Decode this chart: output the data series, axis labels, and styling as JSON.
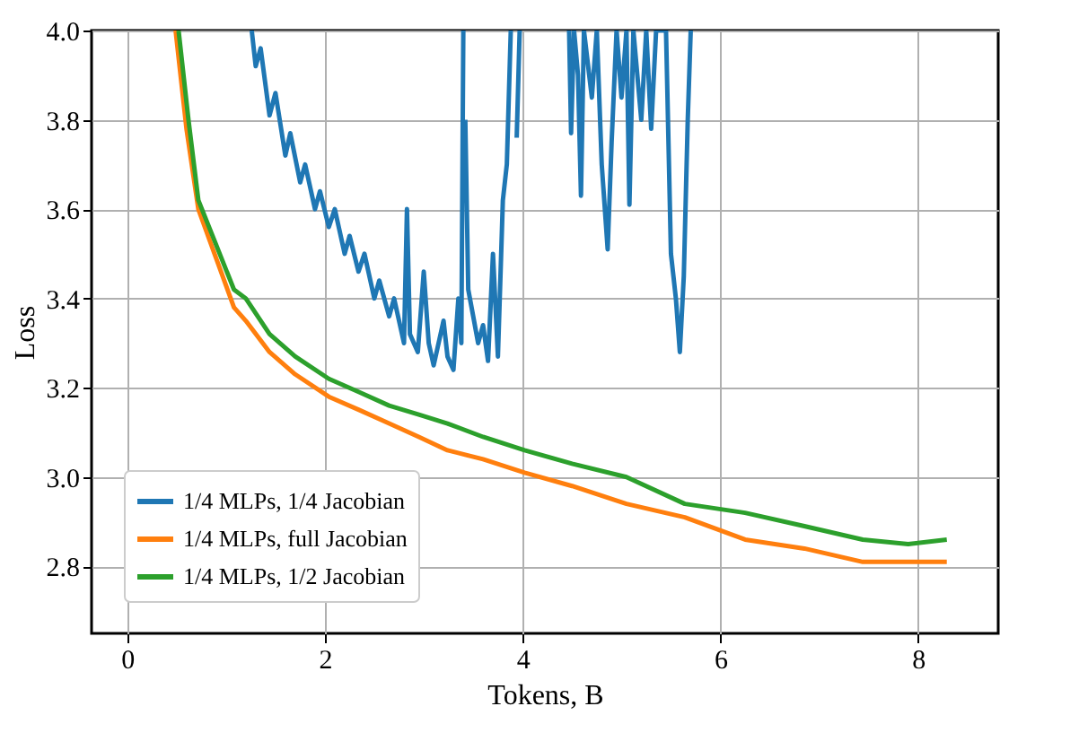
{
  "chart_data": {
    "type": "line",
    "xlabel": "Tokens, B",
    "ylabel": "Loss",
    "xlim": [
      -0.36,
      8.81
    ],
    "ylim": [
      2.65,
      4.0
    ],
    "xticks": [
      0,
      2,
      4,
      6,
      8
    ],
    "yticks": [
      2.8,
      {
        "value": 3,
        "label": "3.0"
      },
      3.2,
      3.4,
      3.6,
      3.8,
      {
        "value": 4,
        "label": "4.0"
      }
    ],
    "grid": true,
    "legend": "bottom left",
    "line_style": "solid",
    "marker": "none",
    "series": [
      {
        "name": "1/4 MLPs, 1/4 Jacobian",
        "color": "#1f77b4",
        "x": [
          1.26,
          1.3,
          1.35,
          1.44,
          1.5,
          1.6,
          1.65,
          1.75,
          1.8,
          1.9,
          1.95,
          2.04,
          2.1,
          2.2,
          2.25,
          2.34,
          2.4,
          2.5,
          2.55,
          2.65,
          2.7,
          2.8,
          2.83,
          2.86,
          2.94,
          3.0,
          3.05,
          3.1,
          3.2,
          3.24,
          3.3,
          3.35,
          3.38,
          3.4,
          3.41,
          3.42,
          3.45,
          3.5,
          3.55,
          3.6,
          3.65,
          3.7,
          3.75,
          3.8,
          3.84,
          3.88,
          3.92,
          3.94,
          3.97,
          4.2,
          4.47,
          4.49,
          4.52,
          4.56,
          4.59,
          4.62,
          4.7,
          4.75,
          4.8,
          4.86,
          4.9,
          4.95,
          5.0,
          5.05,
          5.08,
          5.12,
          5.2,
          5.25,
          5.3,
          5.35,
          5.45,
          5.5,
          5.55,
          5.59,
          5.63,
          5.67,
          5.7
        ],
        "values": [
          4.0,
          3.92,
          3.96,
          3.81,
          3.86,
          3.72,
          3.77,
          3.66,
          3.7,
          3.6,
          3.64,
          3.56,
          3.6,
          3.5,
          3.54,
          3.46,
          3.5,
          3.4,
          3.44,
          3.36,
          3.4,
          3.3,
          3.6,
          3.32,
          3.28,
          3.46,
          3.3,
          3.25,
          3.35,
          3.27,
          3.24,
          3.4,
          3.3,
          4.0,
          null,
          3.8,
          3.42,
          3.36,
          3.3,
          3.34,
          3.26,
          3.5,
          3.27,
          3.62,
          3.7,
          4.0,
          null,
          3.76,
          4.0,
          null,
          4.0,
          3.77,
          4.0,
          3.9,
          3.63,
          4.0,
          3.85,
          4.0,
          3.7,
          3.51,
          3.75,
          4.0,
          3.85,
          4.0,
          3.61,
          4.0,
          3.8,
          4.0,
          3.78,
          4.0,
          4.0,
          3.5,
          3.4,
          3.28,
          3.45,
          3.8,
          4.0
        ]
      },
      {
        "name": "1/4 MLPs, full Jacobian",
        "color": "#ff7f0e",
        "x": [
          0.49,
          0.6,
          0.72,
          0.9,
          1.08,
          1.2,
          1.44,
          1.7,
          2.04,
          2.35,
          2.65,
          2.95,
          3.24,
          3.6,
          4.02,
          4.5,
          5.05,
          5.64,
          6.25,
          6.85,
          7.44,
          7.9,
          8.29
        ],
        "values": [
          4.0,
          3.78,
          3.6,
          3.49,
          3.38,
          3.35,
          3.28,
          3.23,
          3.18,
          3.15,
          3.12,
          3.09,
          3.06,
          3.04,
          3.01,
          2.98,
          2.94,
          2.91,
          2.86,
          2.84,
          2.81,
          2.81,
          2.81
        ]
      },
      {
        "name": "1/4 MLPs, 1/2 Jacobian",
        "color": "#2ca02c",
        "x": [
          0.52,
          0.62,
          0.72,
          0.9,
          1.08,
          1.2,
          1.44,
          1.7,
          2.04,
          2.35,
          2.65,
          2.95,
          3.24,
          3.6,
          4.02,
          4.5,
          5.05,
          5.64,
          6.25,
          6.85,
          7.44,
          7.9,
          8.29
        ],
        "values": [
          4.0,
          3.8,
          3.62,
          3.52,
          3.42,
          3.4,
          3.32,
          3.27,
          3.22,
          3.19,
          3.16,
          3.14,
          3.12,
          3.09,
          3.06,
          3.03,
          3.0,
          2.94,
          2.92,
          2.89,
          2.86,
          2.85,
          2.86
        ]
      }
    ]
  }
}
